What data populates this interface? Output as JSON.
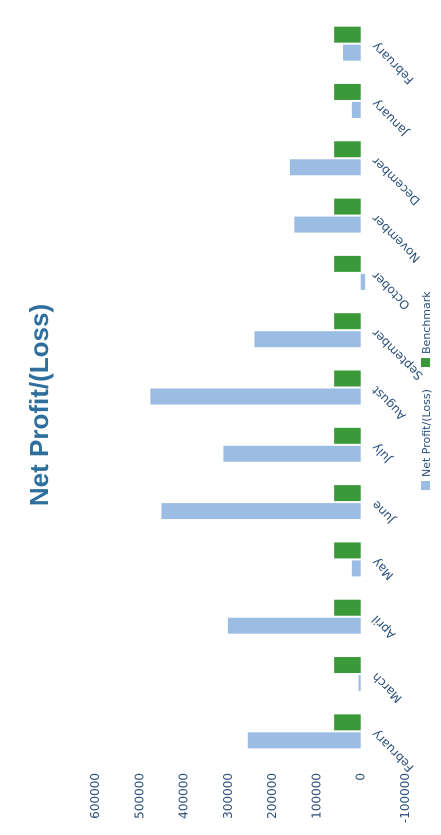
{
  "chart_data": {
    "type": "bar",
    "title": "Net Profit/(Loss)",
    "categories": [
      "February",
      "March",
      "April",
      "May",
      "June",
      "July",
      "August",
      "September",
      "October",
      "November",
      "December",
      "January",
      "February"
    ],
    "series": [
      {
        "name": "Net Profit/(Loss)",
        "color": "#9bbde3",
        "values": [
          255000,
          5000,
          300000,
          20000,
          450000,
          310000,
          475000,
          240000,
          -10000,
          150000,
          160000,
          20000,
          40000
        ]
      },
      {
        "name": "Benchmark",
        "color": "#3a9a3a",
        "values": [
          60000,
          60000,
          60000,
          60000,
          60000,
          60000,
          60000,
          60000,
          60000,
          60000,
          60000,
          60000,
          60000
        ]
      }
    ],
    "ylim": [
      -100000,
      600000
    ],
    "yticks": [
      "-100000",
      "0",
      "100000",
      "200000",
      "300000",
      "400000",
      "500000",
      "600000"
    ],
    "xlabel": "",
    "ylabel": "",
    "legend_position": "bottom",
    "grid": false
  }
}
